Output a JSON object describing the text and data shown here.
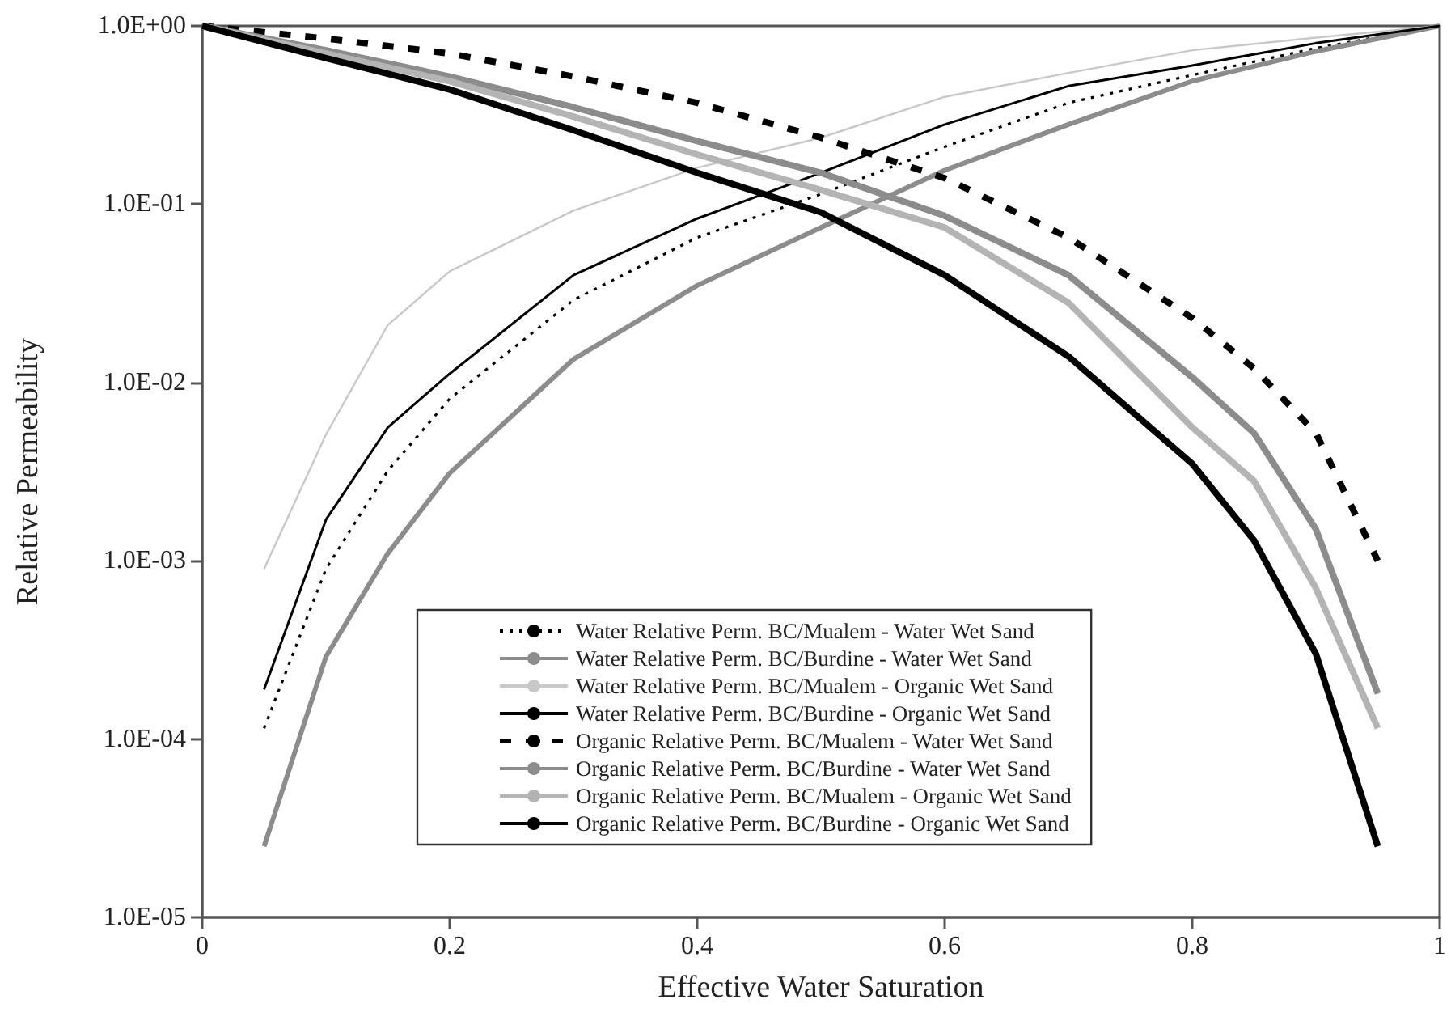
{
  "chart_data": {
    "type": "line",
    "xlabel": "Effective Water Saturation",
    "ylabel": "Relative Permeability",
    "xlim": [
      0,
      1
    ],
    "xticks": [
      0,
      0.2,
      0.4,
      0.6,
      0.8,
      1
    ],
    "ylim": [
      1e-05,
      1
    ],
    "yticks": [
      {
        "value": 1e-05,
        "label": "1.0E-05"
      },
      {
        "value": 0.0001,
        "label": "1.0E-04"
      },
      {
        "value": 0.001,
        "label": "1.0E-03"
      },
      {
        "value": 0.01,
        "label": "1.0E-02"
      },
      {
        "value": 0.1,
        "label": "1.0E-01"
      },
      {
        "value": 1,
        "label": "1.0E+00"
      }
    ],
    "log": true,
    "grid": false,
    "legend": "bottom",
    "marker": "none",
    "series": [
      {
        "name": "Water Relative Perm. BC/Mualem - Water Wet Sand",
        "color": "#000000",
        "line_style": "dotted",
        "x": [
          0.05,
          0.1,
          0.15,
          0.2,
          0.3,
          0.4,
          0.5,
          0.6,
          0.7,
          0.8,
          0.9,
          1
        ],
        "values": [
          0.000115,
          0.0009,
          0.0032,
          0.0081,
          0.029,
          0.065,
          0.114,
          0.21,
          0.37,
          0.53,
          0.75,
          1
        ]
      },
      {
        "name": "Water Relative Perm. BC/Burdine - Water Wet Sand",
        "color": "#8c8c8c",
        "line_style": "solid",
        "x": [
          0.05,
          0.1,
          0.15,
          0.2,
          0.3,
          0.4,
          0.5,
          0.6,
          0.7,
          0.8,
          0.9,
          1
        ],
        "values": [
          2.5e-05,
          0.00029,
          0.0011,
          0.0031,
          0.0135,
          0.035,
          0.074,
          0.155,
          0.28,
          0.49,
          0.72,
          1
        ]
      },
      {
        "name": "Water Relative Perm. BC/Mualem - Organic Wet Sand",
        "color": "#c8c8c8",
        "line_style": "solid",
        "x": [
          0.05,
          0.1,
          0.15,
          0.2,
          0.3,
          0.4,
          0.5,
          0.6,
          0.7,
          0.8,
          0.9,
          1
        ],
        "values": [
          0.0009,
          0.0051,
          0.021,
          0.042,
          0.092,
          0.16,
          0.236,
          0.4,
          0.545,
          0.73,
          0.86,
          1
        ]
      },
      {
        "name": "Water Relative Perm. BC/Burdine - Organic Wet Sand",
        "color": "#000000",
        "line_style": "solid",
        "x": [
          0.05,
          0.1,
          0.15,
          0.2,
          0.3,
          0.4,
          0.5,
          0.6,
          0.7,
          0.8,
          0.9,
          1
        ],
        "values": [
          0.00019,
          0.0017,
          0.0056,
          0.0112,
          0.04,
          0.083,
          0.15,
          0.28,
          0.46,
          0.6,
          0.8,
          1
        ]
      },
      {
        "name": "Organic Relative Perm. BC/Mualem - Water Wet Sand",
        "color": "#000000",
        "line_style": "dashed",
        "x": [
          0,
          0.1,
          0.2,
          0.3,
          0.4,
          0.5,
          0.6,
          0.7,
          0.8,
          0.85,
          0.9,
          0.95
        ],
        "values": [
          1,
          0.85,
          0.7,
          0.52,
          0.37,
          0.236,
          0.14,
          0.065,
          0.023,
          0.012,
          0.0052,
          0.001
        ]
      },
      {
        "name": "Organic Relative Perm. BC/Burdine - Water Wet Sand",
        "color": "#8c8c8c",
        "line_style": "solid",
        "x": [
          0,
          0.1,
          0.2,
          0.3,
          0.4,
          0.5,
          0.6,
          0.7,
          0.8,
          0.85,
          0.9,
          0.95
        ],
        "values": [
          1,
          0.73,
          0.52,
          0.35,
          0.226,
          0.15,
          0.086,
          0.04,
          0.0107,
          0.0052,
          0.0015,
          0.00018
        ]
      },
      {
        "name": "Organic Relative Perm. BC/Mualem - Organic Wet Sand",
        "color": "#b4b4b4",
        "line_style": "solid",
        "x": [
          0,
          0.1,
          0.2,
          0.3,
          0.4,
          0.5,
          0.6,
          0.7,
          0.8,
          0.85,
          0.9,
          0.95
        ],
        "values": [
          1,
          0.7,
          0.49,
          0.31,
          0.19,
          0.12,
          0.074,
          0.028,
          0.0056,
          0.0028,
          0.0007,
          0.000115
        ]
      },
      {
        "name": "Organic Relative Perm. BC/Burdine - Organic Wet Sand",
        "color": "#000000",
        "line_style": "solid",
        "x": [
          0,
          0.1,
          0.2,
          0.3,
          0.4,
          0.5,
          0.6,
          0.7,
          0.8,
          0.85,
          0.9,
          0.95
        ],
        "values": [
          1,
          0.66,
          0.44,
          0.26,
          0.15,
          0.09,
          0.04,
          0.014,
          0.0035,
          0.0013,
          0.0003,
          2.5e-05
        ]
      }
    ]
  }
}
